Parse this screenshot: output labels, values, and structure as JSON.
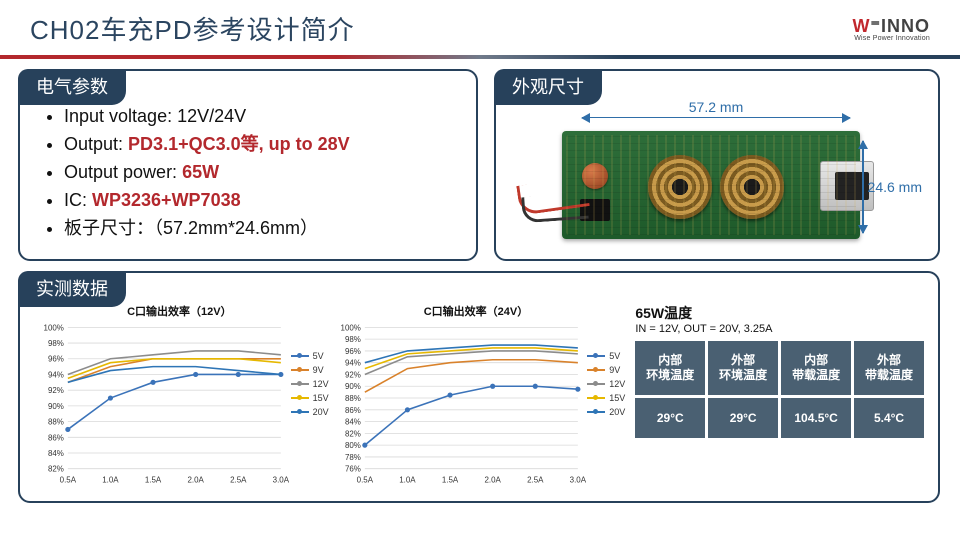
{
  "title": "CH02车充PD参考设计简介",
  "logo": {
    "main_red": "W",
    "main_grey": "⁼INNO",
    "sub": "Wise Power Innovation"
  },
  "panels": {
    "elec_header": "电气参数",
    "size_header": "外观尺寸",
    "data_header": "实测数据"
  },
  "bullets": {
    "b1_pre": "Input voltage: 12V/24V",
    "b2_pre": "Output: ",
    "b2_hl": "PD3.1+QC3.0等, up to 28V",
    "b3_pre": "Output power: ",
    "b3_hl": "65W",
    "b4_pre": "IC: ",
    "b4_hl": "WP3236+WP7038",
    "b5_pre": "板子尺寸：（57.2mm*24.6mm）"
  },
  "dimensions": {
    "width": "57.2 mm",
    "height": "24.6 mm"
  },
  "series_colors": {
    "s5": "#3b73b9",
    "s9": "#d9822b",
    "s12": "#8c8c8c",
    "s15": "#e6b800",
    "s20": "#2e75b6",
    "s5b": "#6aa84f"
  },
  "chart_style": {
    "grid_color": "#d9d9d9",
    "axis_color": "#666666",
    "tick_fontsize": 8,
    "title_fontsize": 11,
    "line_width": 1.6,
    "marker_radius": 2.6,
    "background": "#ffffff"
  },
  "chart12": {
    "title": "C口输出效率（12V）",
    "x_ticks": [
      "0.5A",
      "1.0A",
      "1.5A",
      "2.0A",
      "2.5A",
      "3.0A"
    ],
    "y_min": 82,
    "y_max": 100,
    "y_step": 2,
    "x_vals": [
      0.5,
      1.0,
      1.5,
      2.0,
      2.5,
      3.0
    ],
    "series": {
      "5V": [
        87.0,
        91.0,
        93.0,
        94.0,
        94.0,
        94.0
      ],
      "9V": [
        93.0,
        95.0,
        96.0,
        96.0,
        96.0,
        96.0
      ],
      "12V": [
        94.0,
        96.0,
        96.5,
        97.0,
        97.0,
        96.5
      ],
      "15V": [
        93.5,
        95.5,
        96.0,
        96.0,
        96.0,
        95.5
      ],
      "20V": [
        93.0,
        94.5,
        95.0,
        95.0,
        94.5,
        94.0
      ]
    },
    "marker_series": "5V"
  },
  "chart24": {
    "title": "C口输出效率（24V）",
    "x_ticks": [
      "0.5A",
      "1.0A",
      "1.5A",
      "2.0A",
      "2.5A",
      "3.0A"
    ],
    "y_min": 76,
    "y_max": 100,
    "y_step": 2,
    "x_vals": [
      0.5,
      1.0,
      1.5,
      2.0,
      2.5,
      3.0
    ],
    "series": {
      "5V": [
        80.0,
        86.0,
        88.5,
        90.0,
        90.0,
        89.5
      ],
      "9V": [
        89.0,
        93.0,
        94.0,
        94.5,
        94.5,
        94.0
      ],
      "12V": [
        92.0,
        95.0,
        95.5,
        96.0,
        96.0,
        95.5
      ],
      "15V": [
        93.0,
        95.5,
        96.0,
        96.5,
        96.5,
        96.0
      ],
      "20V": [
        94.0,
        96.0,
        96.5,
        97.0,
        97.0,
        96.5
      ]
    },
    "marker_series": "5V"
  },
  "legend_labels": [
    "5V",
    "9V",
    "12V",
    "15V",
    "20V"
  ],
  "temp": {
    "title": "65W温度",
    "sub": "IN = 12V, OUT = 20V, 3.25A",
    "headers": [
      "内部\n环境温度",
      "外部\n环境温度",
      "内部\n带载温度",
      "外部\n带载温度"
    ],
    "values": [
      "29°C",
      "29°C",
      "104.5°C",
      "5.4°C"
    ],
    "cell_bg": "#4a6072",
    "cell_fg": "#ffffff"
  }
}
